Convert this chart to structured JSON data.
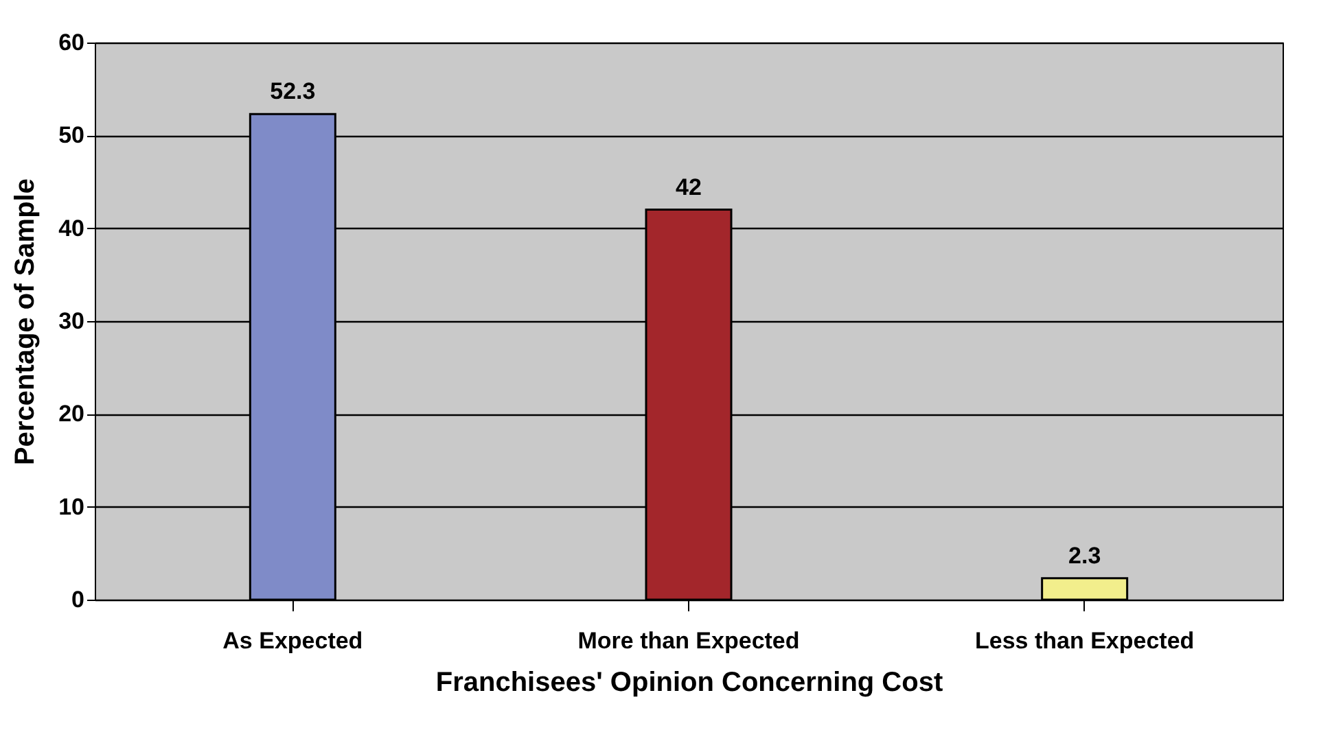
{
  "chart_data": {
    "type": "bar",
    "xlabel": "Franchisees' Opinion Concerning Cost",
    "ylabel": "Percentage of Sample",
    "categories": [
      "As Expected",
      "More than Expected",
      "Less than Expected"
    ],
    "values": [
      52.3,
      42,
      2.3
    ],
    "colors": [
      "#7f8bc8",
      "#a3262b",
      "#f2ee8c"
    ],
    "ylim": [
      0,
      60
    ],
    "yticks": [
      0,
      10,
      20,
      30,
      40,
      50,
      60
    ],
    "grid": "y",
    "data_labels": true
  }
}
